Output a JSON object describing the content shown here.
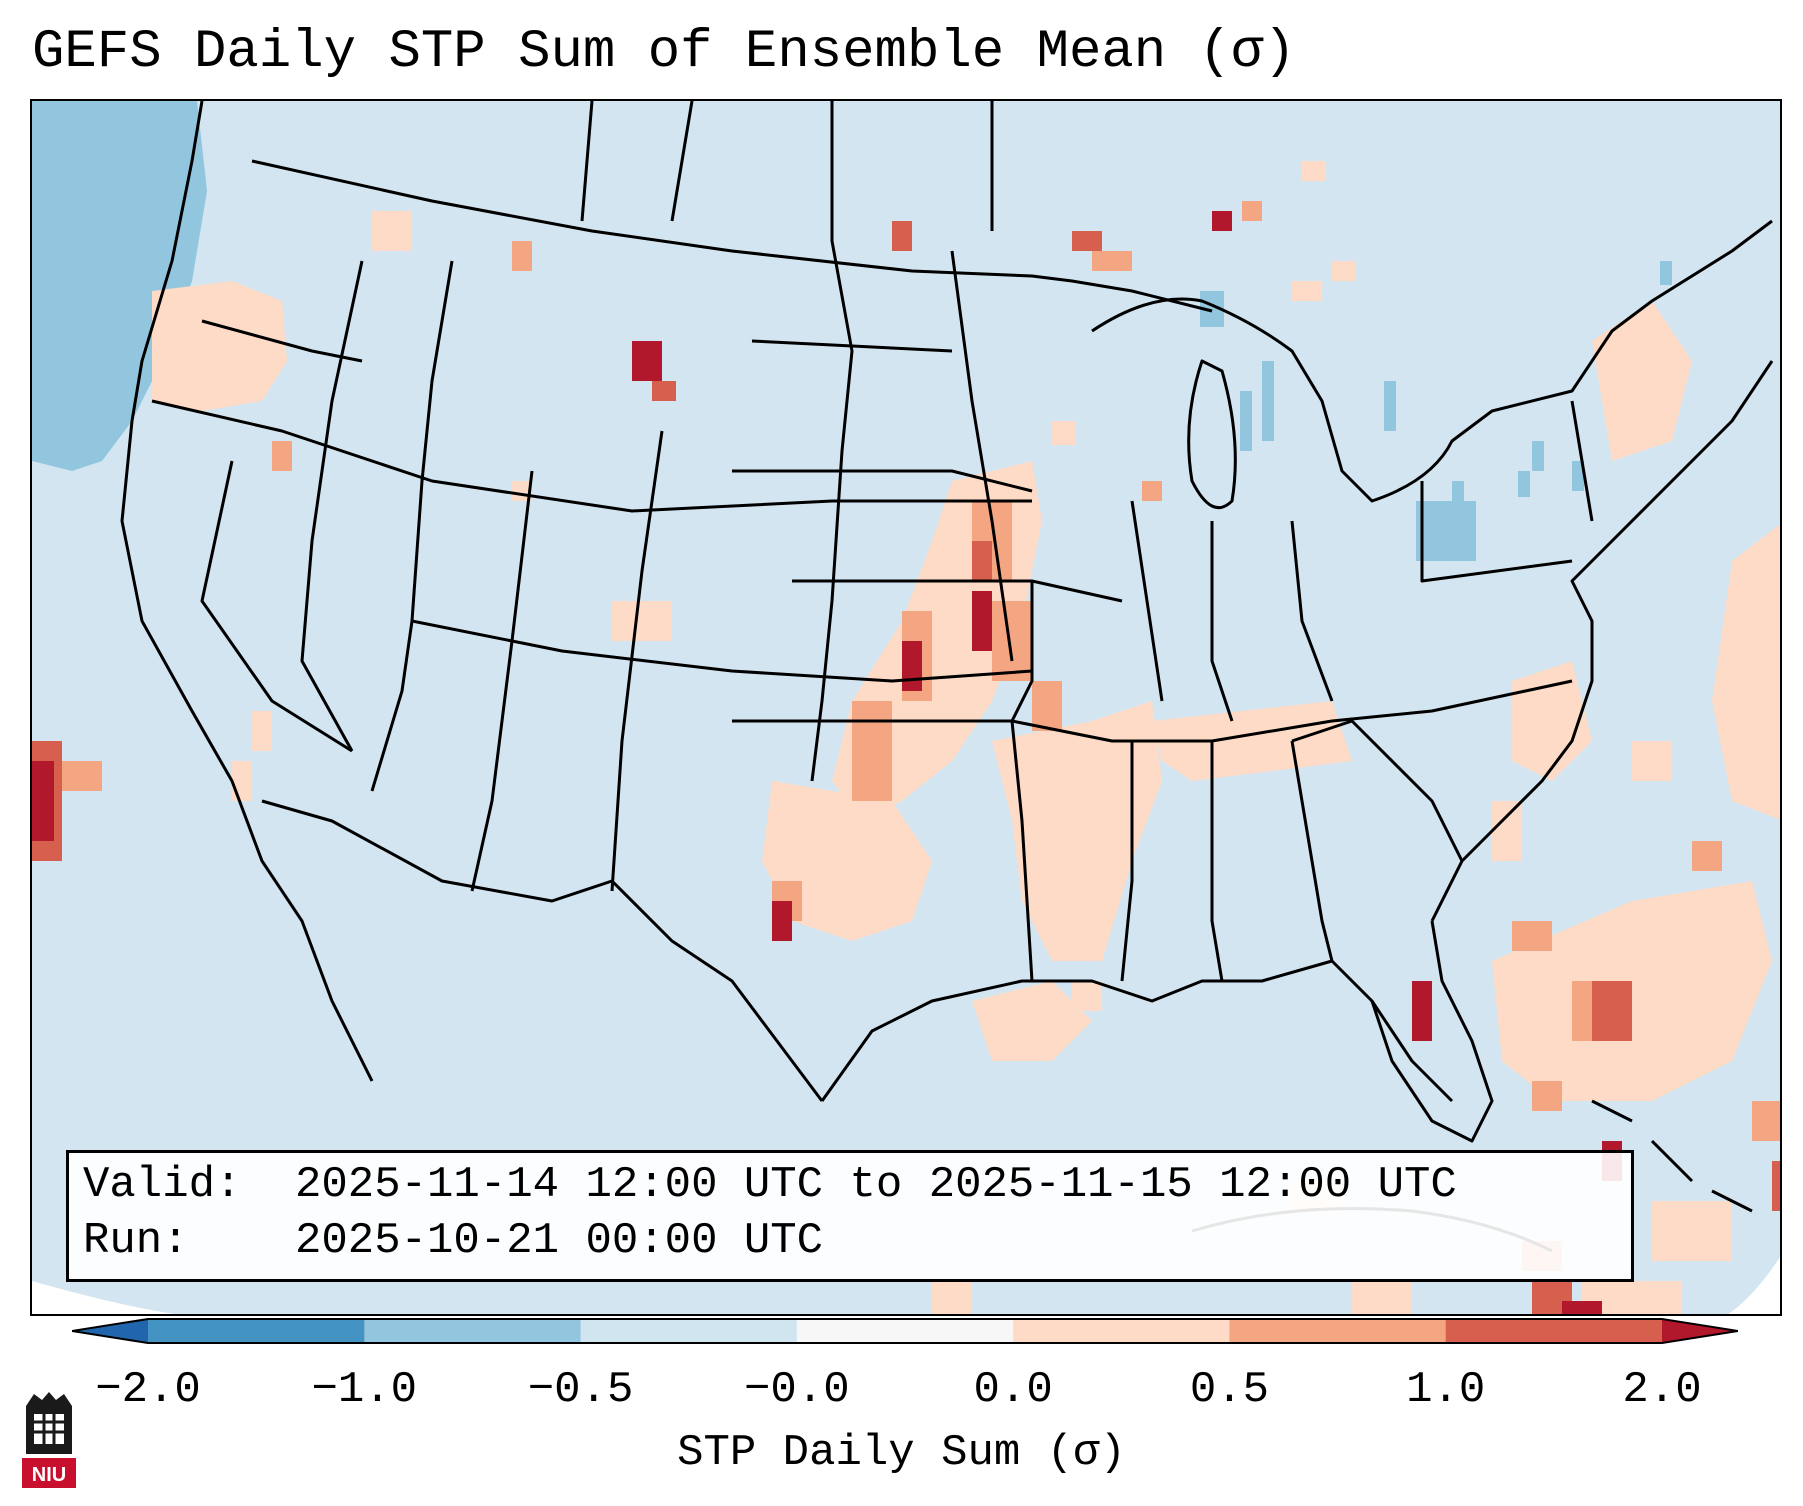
{
  "title": "GEFS Daily STP Sum of Ensemble Mean (σ)",
  "info": {
    "valid_label": "Valid:",
    "valid_value": "2025-11-14 12:00 UTC to 2025-11-15 12:00 UTC",
    "run_label": "Run:",
    "run_value": "2025-10-21 00:00 UTC"
  },
  "colorbar": {
    "label": "STP Daily Sum (σ)",
    "ticks": [
      "−2.0",
      "−1.0",
      "−0.5",
      "−0.0",
      "0.0",
      "0.5",
      "1.0",
      "2.0"
    ],
    "bins": [
      {
        "range": "below -2.0",
        "color": "#2166ac"
      },
      {
        "range": "-2.0 to -1.0",
        "color": "#4393c3"
      },
      {
        "range": "-1.0 to -0.5",
        "color": "#92c5de"
      },
      {
        "range": "-0.5 to -0.0",
        "color": "#d1e5f0"
      },
      {
        "range": "-0.0 to 0.0",
        "color": "#f7f7f7"
      },
      {
        "range": "0.0 to 0.5",
        "color": "#fddbc7"
      },
      {
        "range": "0.5 to 1.0",
        "color": "#f4a582"
      },
      {
        "range": "1.0 to 2.0",
        "color": "#d6604d"
      },
      {
        "range": "above 2.0",
        "color": "#b2182b"
      }
    ]
  },
  "logo": {
    "text": "NIU"
  }
}
